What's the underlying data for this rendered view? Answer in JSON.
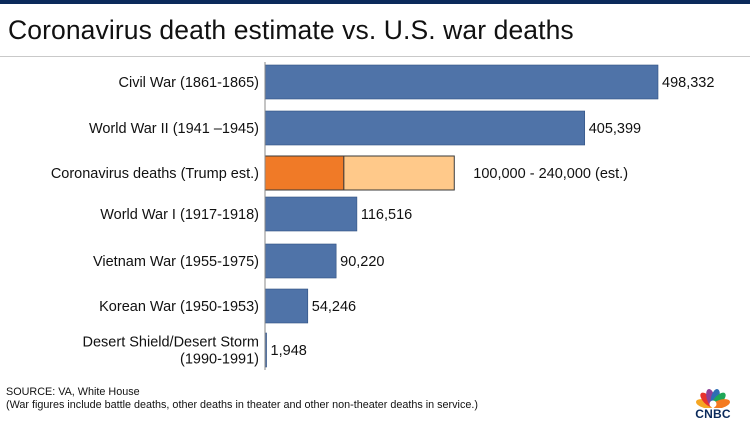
{
  "title": "Coronavirus death estimate vs. U.S. war deaths",
  "source": {
    "line1": "SOURCE: VA, White House",
    "line2": "(War figures include battle deaths, other deaths in theater and other non-theater deaths in service.)"
  },
  "brand": {
    "name": "CNBC",
    "colors": [
      "#f5a623",
      "#e8322c",
      "#8f3f97",
      "#2e6db4",
      "#1fa657",
      "#f47a20"
    ]
  },
  "colors": {
    "war_bar": "#4f73a8",
    "war_bar_edge": "#2f4f80",
    "estimate_low": "#f07a27",
    "estimate_range": "#ffc98a",
    "estimate_edge": "#3a3a3a"
  },
  "chart_data": {
    "type": "bar",
    "orientation": "horizontal",
    "title": "Coronavirus death estimate vs. U.S. war deaths",
    "xlabel": "",
    "ylabel": "",
    "xlim": [
      0,
      498332
    ],
    "grid": false,
    "categories": [
      "Civil War (1861-1865)",
      "World War II (1941 –1945)",
      "Coronavirus deaths (Trump est.)",
      "World War I (1917-1918)",
      "Vietnam War (1955-1975)",
      "Korean War (1950-1953)",
      "Desert Shield/Desert Storm (1990-1991)"
    ],
    "category_lines": [
      [
        "Civil War (1861-1865)"
      ],
      [
        "World War II (1941 –1945)"
      ],
      [
        "Coronavirus deaths (Trump est.)"
      ],
      [
        "World War I (1917-1918)"
      ],
      [
        "Vietnam War (1955-1975)"
      ],
      [
        "Korean War (1950-1953)"
      ],
      [
        "Desert Shield/Desert Storm",
        "(1990-1991)"
      ]
    ],
    "values": [
      498332,
      405399,
      null,
      116516,
      90220,
      54246,
      1948
    ],
    "ranges": [
      null,
      null,
      [
        100000,
        240000
      ],
      null,
      null,
      null,
      null
    ],
    "value_labels": [
      "498,332",
      "405,399",
      "100,000 - 240,000 (est.)",
      "116,516",
      "90,220",
      "54,246",
      "1,948"
    ]
  }
}
